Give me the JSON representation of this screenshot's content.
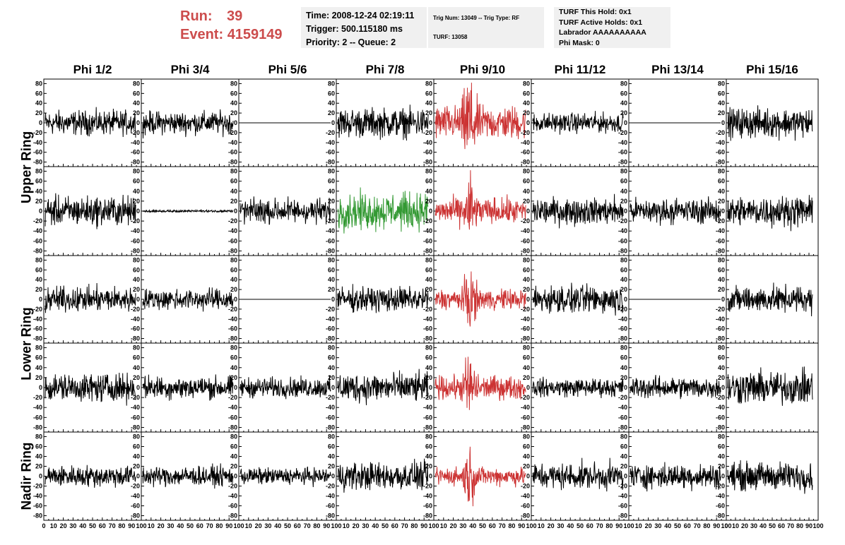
{
  "header": {
    "run_label": "Run:",
    "run_value": "39",
    "event_label": "Event:",
    "event_value": "4159149",
    "time": "Time: 2008-12-24 02:19:11",
    "trigger": "Trigger: 500.115180 ms",
    "priority": "Priority: 2 -- Queue: 2",
    "trig_num": "Trig Num: 13049 -- Trig Type: RF",
    "turf": "TURF: 13058",
    "turf_hold": "TURF This Hold: 0x1",
    "turf_active": "TURF Active Holds: 0x1",
    "labrador": "Labrador AAAAAAAAAA",
    "phi_mask": "Phi Mask: 0"
  },
  "colors": {
    "normal": "#000000",
    "triggered": "#cc3333",
    "highlight": "#339933",
    "header": "#cc4c4c"
  },
  "chart_data": {
    "type": "line",
    "columns": [
      "Phi 1/2",
      "Phi 3/4",
      "Phi 5/6",
      "Phi 7/8",
      "Phi 9/10",
      "Phi 11/12",
      "Phi 13/14",
      "Phi 15/16"
    ],
    "ring_labels": [
      {
        "text": "Upper Ring",
        "rows": [
          0,
          1
        ]
      },
      {
        "text": "Lower Ring",
        "rows": [
          2,
          3
        ]
      },
      {
        "text": "Nadir Ring",
        "rows": [
          4
        ]
      }
    ],
    "xlim": [
      0,
      100
    ],
    "ylim": [
      -85,
      85
    ],
    "y_ticks": [
      80,
      60,
      40,
      20,
      0,
      -20,
      -40,
      -60,
      -80
    ],
    "x_tick_labels": [
      "0",
      "10",
      "20",
      "30",
      "40",
      "50",
      "60",
      "70",
      "80",
      "90",
      "100"
    ],
    "panels": [
      [
        "normal",
        "normal",
        "flat",
        "normal",
        "triggered",
        "normal",
        "flat",
        "normal"
      ],
      [
        "normal",
        "flat-small",
        "normal",
        "highlight",
        "triggered",
        "normal",
        "normal",
        "normal"
      ],
      [
        "normal",
        "normal",
        "flat",
        "normal",
        "triggered",
        "normal",
        "flat",
        "normal"
      ],
      [
        "normal",
        "normal",
        "normal",
        "normal",
        "triggered",
        "normal",
        "normal",
        "normal"
      ],
      [
        "normal",
        "normal",
        "normal",
        "normal",
        "triggered",
        "normal",
        "normal",
        "normal"
      ]
    ],
    "amplitude_approx": [
      [
        15,
        14,
        0,
        18,
        30,
        12,
        0,
        18
      ],
      [
        18,
        2,
        15,
        22,
        22,
        16,
        15,
        18
      ],
      [
        15,
        13,
        0,
        15,
        18,
        17,
        0,
        16
      ],
      [
        17,
        14,
        12,
        18,
        20,
        11,
        13,
        20
      ],
      [
        13,
        12,
        10,
        17,
        16,
        16,
        15,
        17
      ]
    ],
    "samples_per_trace": 260
  }
}
